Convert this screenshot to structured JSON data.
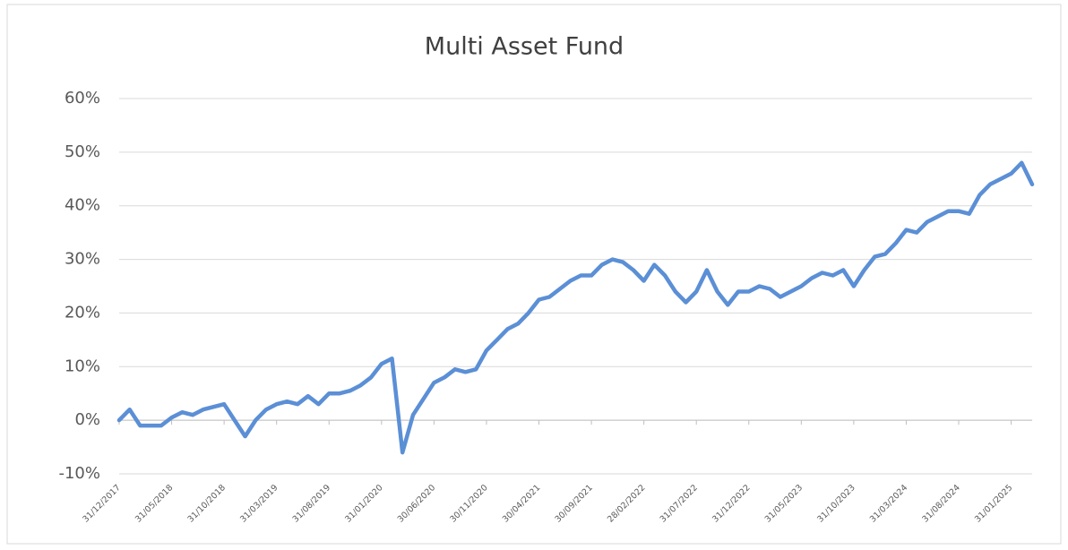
{
  "chart_data": {
    "type": "line",
    "title": "Multi Asset Fund",
    "categories": [
      "31/12/2017",
      null,
      null,
      null,
      null,
      "31/05/2018",
      null,
      null,
      null,
      null,
      "31/10/2018",
      null,
      null,
      null,
      null,
      "31/03/2019",
      null,
      null,
      null,
      null,
      "31/08/2019",
      null,
      null,
      null,
      null,
      "31/01/2020",
      null,
      null,
      null,
      null,
      "30/06/2020",
      null,
      null,
      null,
      null,
      "30/11/2020",
      null,
      null,
      null,
      null,
      "30/04/2021",
      null,
      null,
      null,
      null,
      "30/09/2021",
      null,
      null,
      null,
      null,
      "28/02/2022",
      null,
      null,
      null,
      null,
      "31/07/2022",
      null,
      null,
      null,
      null,
      "31/12/2022",
      null,
      null,
      null,
      null,
      "31/05/2023",
      null,
      null,
      null,
      null,
      "31/10/2023",
      null,
      null,
      null,
      null,
      "31/03/2024",
      null,
      null,
      null,
      null,
      "31/08/2024",
      null,
      null,
      null,
      null,
      "31/01/2025",
      null,
      null
    ],
    "series": [
      {
        "name": "Multi Asset Fund",
        "color": "#5b8fd6",
        "values": [
          0,
          2,
          -1,
          -1,
          -1,
          0.5,
          1.5,
          1,
          2,
          2.5,
          3,
          0,
          -3,
          0,
          2,
          3,
          3.5,
          3,
          4.5,
          3,
          5,
          5,
          5.5,
          6.5,
          8,
          10.5,
          11.5,
          -6,
          1,
          4,
          7,
          8,
          9.5,
          9,
          9.5,
          13,
          15,
          17,
          18,
          20,
          22.5,
          23,
          24.5,
          26,
          27,
          27,
          29,
          30,
          29.5,
          28,
          26,
          29,
          27,
          24,
          22,
          24,
          28,
          24,
          21.5,
          24,
          24,
          25,
          24.5,
          23,
          24,
          25,
          26.5,
          27.5,
          27,
          28,
          25,
          28,
          30.5,
          31,
          33,
          35.5,
          35,
          37,
          38,
          39,
          39,
          38.5,
          42,
          44,
          45,
          46,
          48,
          44
        ]
      }
    ],
    "ylim": [
      -10,
      60
    ],
    "yticks": [
      {
        "value": -10,
        "label": "-10%"
      },
      {
        "value": 0,
        "label": "0%"
      },
      {
        "value": 10,
        "label": "10%"
      },
      {
        "value": 20,
        "label": "20%"
      },
      {
        "value": 30,
        "label": "30%"
      },
      {
        "value": 40,
        "label": "40%"
      },
      {
        "value": 50,
        "label": "50%"
      },
      {
        "value": 60,
        "label": "60%"
      }
    ],
    "grid": true
  }
}
